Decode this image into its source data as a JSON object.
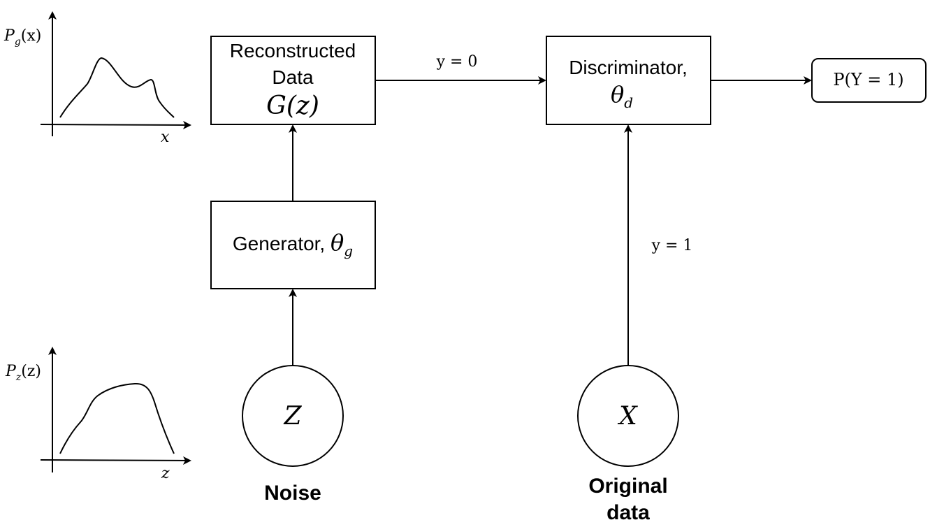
{
  "plots": {
    "top": {
      "ylabel_var": "P",
      "ylabel_sub": "g",
      "ylabel_arg": "(x)",
      "xlabel": "x"
    },
    "bottom": {
      "ylabel_var": "P",
      "ylabel_sub": "z",
      "ylabel_arg": "(z)",
      "xlabel": "z"
    }
  },
  "reconstructed": {
    "line1": "Reconstructed",
    "line2": "Data",
    "math": "G(z)"
  },
  "generator": {
    "label": "Generator, ",
    "theta": "θ",
    "sub": "g"
  },
  "discriminator": {
    "label": "Discriminator,",
    "theta": "θ",
    "sub": "d"
  },
  "output": {
    "text": "P(Y = 1)"
  },
  "edges": {
    "fake_label": "y = 0",
    "real_label": "y = 1"
  },
  "noise": {
    "symbol": "Z",
    "caption": "Noise"
  },
  "original": {
    "symbol": "X",
    "caption_line1": "Original",
    "caption_line2": "data"
  }
}
